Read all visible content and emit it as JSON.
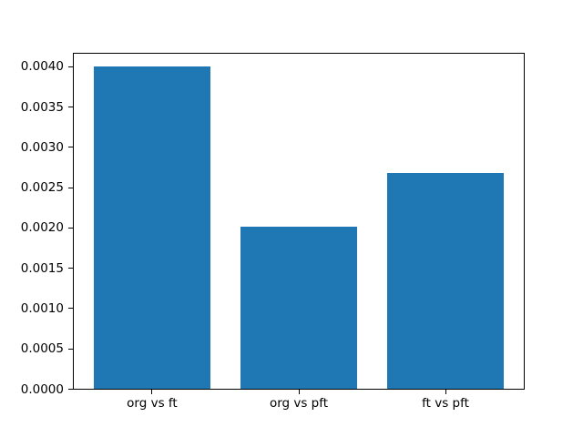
{
  "figure": {
    "background": "#ffffff",
    "title": ""
  },
  "chart_data": {
    "type": "bar",
    "title": "",
    "xlabel": "",
    "ylabel": "",
    "categories": [
      "org vs ft",
      "org vs pft",
      "ft vs pft"
    ],
    "values": [
      0.004,
      0.00202,
      0.00268
    ],
    "bar_color": "#1f77b4",
    "bar_width_units": 0.8,
    "xlim": [
      -0.54,
      2.54
    ],
    "ylim": [
      0,
      0.00418
    ],
    "yticks": {
      "values": [
        0.0,
        0.0005,
        0.001,
        0.0015,
        0.002,
        0.0025,
        0.003,
        0.0035,
        0.004
      ],
      "labels": [
        "0.0000",
        "0.0005",
        "0.0010",
        "0.0015",
        "0.0020",
        "0.0025",
        "0.0030",
        "0.0035",
        "0.0040"
      ]
    },
    "grid": false,
    "legend": null,
    "spine_color": "#000000",
    "tick_color": "#000000",
    "text_color": "#000000"
  }
}
